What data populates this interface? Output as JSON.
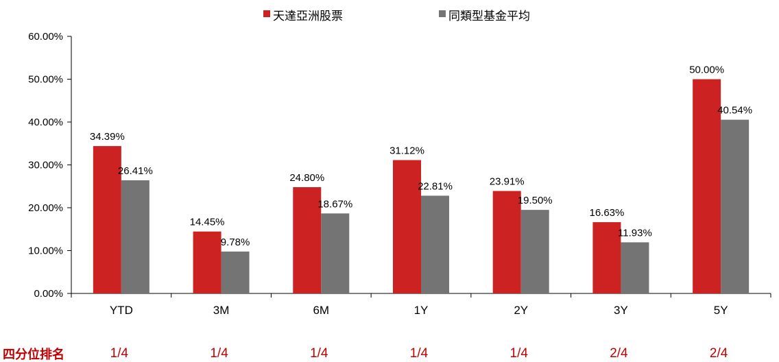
{
  "chart_data": {
    "type": "bar",
    "categories": [
      "YTD",
      "3M",
      "6M",
      "1Y",
      "2Y",
      "3Y",
      "5Y"
    ],
    "series": [
      {
        "name": "天達亞洲股票",
        "color": "#cc2222",
        "values": [
          34.39,
          14.45,
          24.8,
          31.12,
          23.91,
          16.63,
          50.0
        ]
      },
      {
        "name": "同類型基金平均",
        "color": "#747474",
        "values": [
          26.41,
          9.78,
          18.67,
          22.81,
          19.5,
          11.93,
          40.54
        ]
      }
    ],
    "data_labels": [
      [
        "34.39%",
        "14.45%",
        "24.80%",
        "31.12%",
        "23.91%",
        "16.63%",
        "50.00%"
      ],
      [
        "26.41%",
        "9.78%",
        "18.67%",
        "22.81%",
        "19.50%",
        "11.93%",
        "40.54%"
      ]
    ],
    "yticks": [
      "0.00%",
      "10.00%",
      "20.00%",
      "30.00%",
      "40.00%",
      "50.00%",
      "60.00%"
    ],
    "ylim": [
      0,
      60
    ],
    "grid": false,
    "legend": "top",
    "title": "",
    "xlabel": "",
    "ylabel": "",
    "quartile_rank": {
      "label": "四分位排名",
      "values": [
        "1/4",
        "1/4",
        "1/4",
        "1/4",
        "1/4",
        "2/4",
        "2/4"
      ],
      "color": "#c00000"
    }
  }
}
